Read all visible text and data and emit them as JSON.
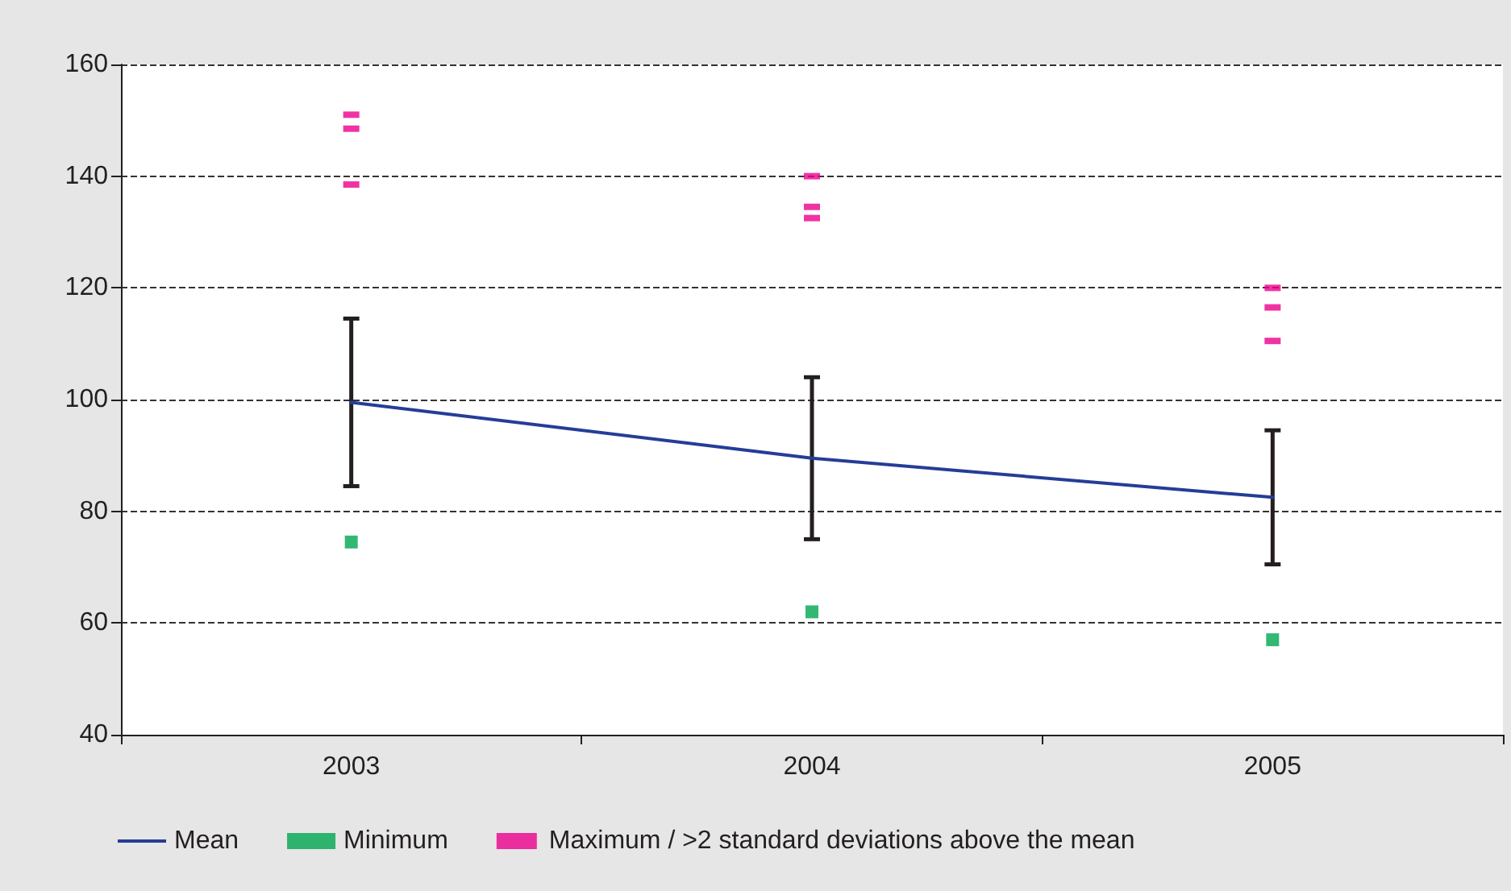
{
  "chart_data": {
    "type": "line",
    "categories": [
      "2003",
      "2004",
      "2005"
    ],
    "series": [
      {
        "name": "Mean",
        "color": "#253d97",
        "marker": "none",
        "values": [
          99.5,
          89.5,
          82.5
        ],
        "errors": [
          [
            84.5,
            114.5
          ],
          [
            75,
            104
          ],
          [
            70.5,
            94.5
          ]
        ]
      },
      {
        "name": "Minimum",
        "type": "scatter",
        "color": "#00a651",
        "marker": "square",
        "values": [
          74.5,
          62,
          57
        ]
      },
      {
        "name": "Maximum / >2 standard deviations above the mean",
        "type": "scatter",
        "color": "#ec008c",
        "marker": "square",
        "values": [
          151,
          140,
          120
        ]
      },
      {
        "type": "scatter",
        "color": "#ec008c",
        "marker": "square",
        "values": [
          148.5,
          134.5,
          116.5
        ]
      },
      {
        "type": "scatter",
        "color": "#ec008c",
        "marker": "square",
        "values": [
          138.5,
          132.5,
          110.5
        ]
      }
    ],
    "ylim": [
      40,
      160
    ],
    "yticks": [
      40,
      60,
      80,
      100,
      120,
      140,
      160
    ],
    "grid": "y",
    "legend": "bottom left",
    "line_style": "solid"
  }
}
